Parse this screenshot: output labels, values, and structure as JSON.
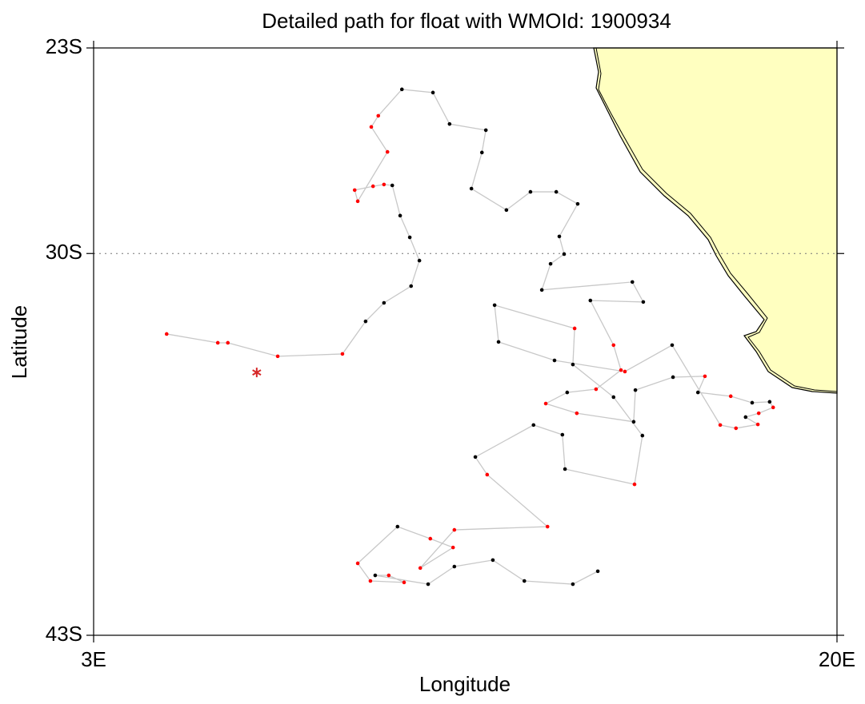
{
  "chart_data": {
    "type": "track",
    "title": "Detailed path for float with WMOId: 1900934",
    "x_label": "Longitude",
    "y_label": "Latitude",
    "xlim": [
      3,
      20
    ],
    "ylim": [
      -43,
      -23
    ],
    "xticks": [
      {
        "value": 3,
        "label": "3E"
      },
      {
        "value": 20,
        "label": "20E"
      }
    ],
    "yticks": [
      {
        "value": -23,
        "label": "23S"
      },
      {
        "value": -30,
        "label": "30S"
      },
      {
        "value": -43,
        "label": "43S"
      }
    ],
    "grid": "dotted",
    "line_color": "#c8c8c8",
    "land_color": "#ffffc0",
    "start": {
      "lon": 6.73,
      "lat": -34.05,
      "color": "#d62728"
    },
    "x": [
      4.67,
      5.84,
      6.07,
      7.21,
      8.69,
      9.22,
      9.64,
      10.26,
      10.45,
      10.23,
      10.01,
      9.83,
      9.64,
      9.39,
      8.97,
      9.04,
      9.72,
      9.35,
      9.51,
      10.05,
      10.76,
      11.14,
      11.97,
      11.88,
      11.64,
      12.44,
      12.99,
      13.58,
      14.07,
      13.65,
      13.76,
      13.45,
      13.25,
      15.32,
      15.57,
      14.36,
      14.89,
      15.06,
      14.49,
      13.83,
      13.34,
      14.05,
      15.35,
      15.39,
      16.25,
      16.98,
      16.82,
      17.57,
      18.06,
      18.46,
      18.54,
      18.21,
      17.91,
      18.19,
      17.69,
      17.33,
      16.23,
      15.15,
      13.54,
      12.26,
      12.17,
      14.0,
      13.96,
      14.89,
      15.55,
      15.37,
      13.78,
      13.72,
      13.06,
      11.73,
      12.0,
      13.38,
      11.25,
      10.47,
      11.22,
      10.7,
      9.95,
      9.04,
      9.33,
      10.1,
      9.75,
      9.44,
      10.65,
      11.25,
      12.13,
      12.85,
      13.96,
      14.53
    ],
    "values": [
      -32.74,
      -33.04,
      -33.04,
      -33.5,
      -33.42,
      -32.31,
      -31.68,
      -31.11,
      -30.24,
      -29.45,
      -28.71,
      -27.68,
      -27.65,
      -27.71,
      -27.84,
      -28.22,
      -26.54,
      -25.69,
      -25.31,
      -24.41,
      -24.52,
      -25.59,
      -25.8,
      -26.56,
      -27.79,
      -28.52,
      -27.9,
      -27.9,
      -28.31,
      -29.42,
      -30.02,
      -30.35,
      -31.24,
      -30.97,
      -31.65,
      -31.6,
      -33.12,
      -33.97,
      -34.62,
      -34.73,
      -35.11,
      -35.44,
      -35.73,
      -34.65,
      -34.21,
      -34.18,
      -34.73,
      -34.86,
      -35.08,
      -35.05,
      -35.24,
      -35.44,
      -35.57,
      -35.82,
      -35.95,
      -35.84,
      -33.12,
      -34.02,
      -33.64,
      -33.01,
      -31.76,
      -32.55,
      -33.78,
      -34.89,
      -36.2,
      -37.86,
      -37.34,
      -36.17,
      -35.84,
      -36.93,
      -37.53,
      -39.3,
      -39.41,
      -40.71,
      -40.01,
      -39.71,
      -39.3,
      -40.55,
      -41.15,
      -41.2,
      -40.96,
      -40.96,
      -41.26,
      -40.66,
      -40.44,
      -41.15,
      -41.26,
      -40.82
    ],
    "point_colors": [
      "red",
      "red",
      "red",
      "red",
      "red",
      "black",
      "black",
      "black",
      "black",
      "black",
      "black",
      "black",
      "red",
      "red",
      "red",
      "red",
      "red",
      "red",
      "red",
      "black",
      "black",
      "black",
      "black",
      "black",
      "black",
      "black",
      "black",
      "black",
      "black",
      "black",
      "black",
      "black",
      "black",
      "black",
      "black",
      "black",
      "red",
      "red",
      "red",
      "black",
      "red",
      "red",
      "black",
      "black",
      "black",
      "red",
      "black",
      "red",
      "black",
      "black",
      "red",
      "red",
      "black",
      "red",
      "red",
      "red",
      "black",
      "red",
      "black",
      "black",
      "black",
      "red",
      "black",
      "black",
      "black",
      "red",
      "black",
      "black",
      "black",
      "black",
      "red",
      "red",
      "red",
      "red",
      "red",
      "red",
      "black",
      "red",
      "red",
      "red",
      "red",
      "black",
      "black",
      "black",
      "black",
      "black",
      "black",
      "black"
    ]
  }
}
